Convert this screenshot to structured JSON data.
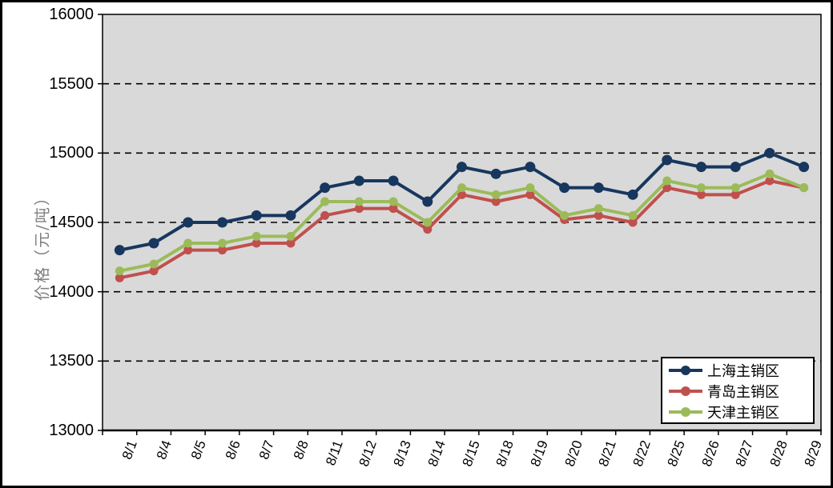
{
  "figure": {
    "background_color": "#FFFFFF",
    "frame_color": "#000000"
  },
  "y_axis": {
    "title": "价格（元/吨）",
    "title_color": "#808080",
    "tick_labels": [
      "16000",
      "15500",
      "15000",
      "14500",
      "14000",
      "13500",
      "13000"
    ]
  },
  "x_axis": {
    "tick_labels": [
      "8/1",
      "8/4",
      "8/5",
      "8/6",
      "8/7",
      "8/8",
      "8/11",
      "8/12",
      "8/13",
      "8/14",
      "8/15",
      "8/18",
      "8/19",
      "8/20",
      "8/21",
      "8/22",
      "8/25",
      "8/26",
      "8/27",
      "8/28",
      "8/29"
    ]
  },
  "legend": {
    "position": "bottom-right-inside"
  },
  "chart_data": {
    "type": "line",
    "title": "",
    "xlabel": "",
    "ylabel": "价格（元/吨）",
    "ylim": [
      13000,
      16000
    ],
    "ytick_step": 500,
    "grid": "horizontal-dashed",
    "plot_background": "#D9D9D9",
    "gridline_color": "#000000",
    "categories": [
      "8/1",
      "8/4",
      "8/5",
      "8/6",
      "8/7",
      "8/8",
      "8/11",
      "8/12",
      "8/13",
      "8/14",
      "8/15",
      "8/18",
      "8/19",
      "8/20",
      "8/21",
      "8/22",
      "8/25",
      "8/26",
      "8/27",
      "8/28",
      "8/29"
    ],
    "series": [
      {
        "name": "上海主销区",
        "color": "#17375E",
        "marker": "circle",
        "values": [
          14300,
          14350,
          14500,
          14500,
          14550,
          14550,
          14750,
          14800,
          14800,
          14650,
          14900,
          14850,
          14900,
          14750,
          14750,
          14700,
          14950,
          14900,
          14900,
          15000,
          14900
        ]
      },
      {
        "name": "青岛主销区",
        "color": "#C0504D",
        "marker": "circle",
        "values": [
          14100,
          14150,
          14300,
          14300,
          14350,
          14350,
          14550,
          14600,
          14600,
          14450,
          14700,
          14650,
          14700,
          14520,
          14550,
          14500,
          14750,
          14700,
          14700,
          14800,
          14750
        ]
      },
      {
        "name": "天津主销区",
        "color": "#9BBB59",
        "marker": "circle",
        "values": [
          14150,
          14200,
          14350,
          14350,
          14400,
          14400,
          14650,
          14650,
          14650,
          14500,
          14750,
          14700,
          14750,
          14550,
          14600,
          14550,
          14800,
          14750,
          14750,
          14850,
          14750
        ]
      }
    ]
  }
}
